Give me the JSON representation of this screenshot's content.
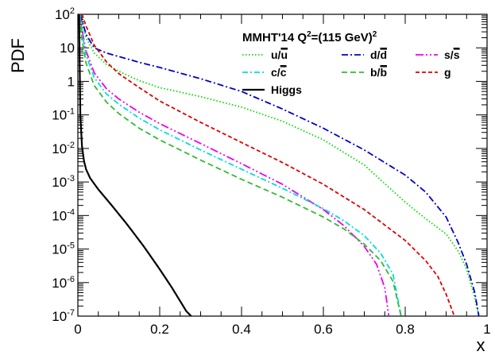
{
  "chart_data": {
    "type": "line",
    "title": "MMHT'14 Q²=(115 GeV)²",
    "title_parts": {
      "prefix": "MMHT'14 Q",
      "sup1": "2",
      "mid": "=(115 GeV)",
      "sup2": "2"
    },
    "xlabel": "x",
    "ylabel": "PDF",
    "xlim": [
      0,
      1
    ],
    "ylim": [
      1e-07,
      100
    ],
    "yscale": "log",
    "x_ticks": [
      {
        "value": 0,
        "label": "0"
      },
      {
        "value": 0.2,
        "label": "0.2"
      },
      {
        "value": 0.4,
        "label": "0.4"
      },
      {
        "value": 0.6,
        "label": "0.6"
      },
      {
        "value": 0.8,
        "label": "0.8"
      },
      {
        "value": 1,
        "label": "1"
      }
    ],
    "y_ticks": [
      {
        "value": 1e-07,
        "base": "10",
        "exp": "-7"
      },
      {
        "value": 1e-06,
        "base": "10",
        "exp": "-6"
      },
      {
        "value": 1e-05,
        "base": "10",
        "exp": "-5"
      },
      {
        "value": 0.0001,
        "base": "10",
        "exp": "-4"
      },
      {
        "value": 0.001,
        "base": "10",
        "exp": "-3"
      },
      {
        "value": 0.01,
        "base": "10",
        "exp": "-2"
      },
      {
        "value": 0.1,
        "base": "10",
        "exp": "-1"
      },
      {
        "value": 1,
        "base": "1",
        "exp": ""
      },
      {
        "value": 10,
        "base": "10",
        "exp": ""
      },
      {
        "value": 100,
        "base": "10",
        "exp": "2"
      }
    ],
    "legend_position": "top-right",
    "series": [
      {
        "name": "u/ū",
        "label_main": "u/",
        "label_bar": "u",
        "color": "#00dd00",
        "dash": "1.5,2.5",
        "x": [
          0.005,
          0.01,
          0.02,
          0.04,
          0.07,
          0.1,
          0.15,
          0.2,
          0.3,
          0.4,
          0.5,
          0.6,
          0.7,
          0.8,
          0.85,
          0.9,
          0.93,
          0.95,
          0.97,
          0.98
        ],
        "y": [
          100,
          60,
          20,
          7,
          3.2,
          2.0,
          1.05,
          0.65,
          0.35,
          0.17,
          0.065,
          0.018,
          0.0032,
          0.00025,
          8e-05,
          2.8e-05,
          8.5e-06,
          2.5e-06,
          3.5e-07,
          1e-07
        ]
      },
      {
        "name": "d/d̄",
        "label_main": "d/",
        "label_bar": "d",
        "color": "#0000cc",
        "dash": "8,3,2,3",
        "x": [
          0.005,
          0.01,
          0.02,
          0.04,
          0.07,
          0.1,
          0.15,
          0.2,
          0.3,
          0.4,
          0.5,
          0.6,
          0.7,
          0.8,
          0.85,
          0.9,
          0.93,
          0.95,
          0.97,
          0.98
        ],
        "y": [
          100,
          70,
          25,
          10,
          7,
          5.5,
          3.7,
          2.6,
          1.2,
          0.5,
          0.15,
          0.04,
          0.009,
          0.0016,
          0.0005,
          9e-05,
          1.5e-05,
          3.5e-06,
          5e-07,
          1e-07
        ]
      },
      {
        "name": "s/s̄",
        "label_main": "s/",
        "label_bar": "s",
        "color": "#ee00ee",
        "dash": "10,3,2,3,2,3",
        "x": [
          0.005,
          0.01,
          0.02,
          0.04,
          0.07,
          0.1,
          0.15,
          0.2,
          0.3,
          0.4,
          0.5,
          0.6,
          0.65,
          0.7,
          0.73,
          0.75,
          0.76
        ],
        "y": [
          100,
          35,
          8,
          1.8,
          0.6,
          0.3,
          0.12,
          0.055,
          0.014,
          0.0035,
          0.00085,
          0.00015,
          5e-05,
          1.2e-05,
          3.5e-06,
          7e-07,
          1e-07
        ]
      },
      {
        "name": "c/c̄",
        "label_main": "c/",
        "label_bar": "c",
        "color": "#00dddd",
        "dash": "7,3,2,3",
        "x": [
          0.005,
          0.01,
          0.02,
          0.04,
          0.07,
          0.1,
          0.15,
          0.2,
          0.3,
          0.4,
          0.5,
          0.6,
          0.65,
          0.7,
          0.74,
          0.77,
          0.79
        ],
        "y": [
          100,
          28,
          6,
          1.3,
          0.42,
          0.21,
          0.08,
          0.036,
          0.009,
          0.0024,
          0.00065,
          0.00016,
          7e-05,
          2.5e-05,
          7.5e-06,
          1.8e-06,
          1e-07
        ]
      },
      {
        "name": "b/b̄",
        "label_main": "b/",
        "label_bar": "b",
        "color": "#33bb33",
        "dash": "7,4",
        "x": [
          0.005,
          0.01,
          0.02,
          0.04,
          0.07,
          0.1,
          0.15,
          0.2,
          0.3,
          0.4,
          0.5,
          0.6,
          0.65,
          0.7,
          0.74,
          0.77,
          0.79
        ],
        "y": [
          80,
          18,
          3.5,
          0.75,
          0.24,
          0.11,
          0.04,
          0.018,
          0.0045,
          0.0012,
          0.00035,
          9e-05,
          4e-05,
          1.4e-05,
          4.5e-06,
          1.1e-06,
          1e-07
        ]
      },
      {
        "name": "g",
        "label_main": "g",
        "label_bar": "",
        "color": "#dd0000",
        "dash": "5,3",
        "x": [
          0.01,
          0.02,
          0.04,
          0.07,
          0.1,
          0.15,
          0.2,
          0.3,
          0.4,
          0.5,
          0.6,
          0.7,
          0.8,
          0.85,
          0.88,
          0.9,
          0.92
        ],
        "y": [
          100,
          45,
          12,
          3.8,
          1.7,
          0.65,
          0.26,
          0.06,
          0.015,
          0.0038,
          0.00085,
          0.00015,
          1.8e-05,
          4.5e-06,
          1.5e-06,
          4.5e-07,
          1e-07
        ]
      },
      {
        "name": "Higgs",
        "label_main": "Higgs",
        "label_bar": "",
        "color": "#000000",
        "dash": "",
        "x": [
          0.003,
          0.006,
          0.01,
          0.015,
          0.02,
          0.03,
          0.05,
          0.08,
          0.12,
          0.16,
          0.2,
          0.23,
          0.25,
          0.265,
          0.277
        ],
        "y": [
          100,
          0.1,
          0.012,
          0.0042,
          0.0024,
          0.0013,
          0.0006,
          0.00022,
          5.5e-05,
          1.25e-05,
          2.5e-06,
          7e-07,
          2.8e-07,
          1.4e-07,
          1e-07
        ]
      }
    ],
    "legend_rows": [
      [
        "u/ū",
        "d/d̄",
        "s/s̄"
      ],
      [
        "c/c̄",
        "b/b̄",
        "g"
      ],
      [
        "Higgs"
      ]
    ]
  }
}
